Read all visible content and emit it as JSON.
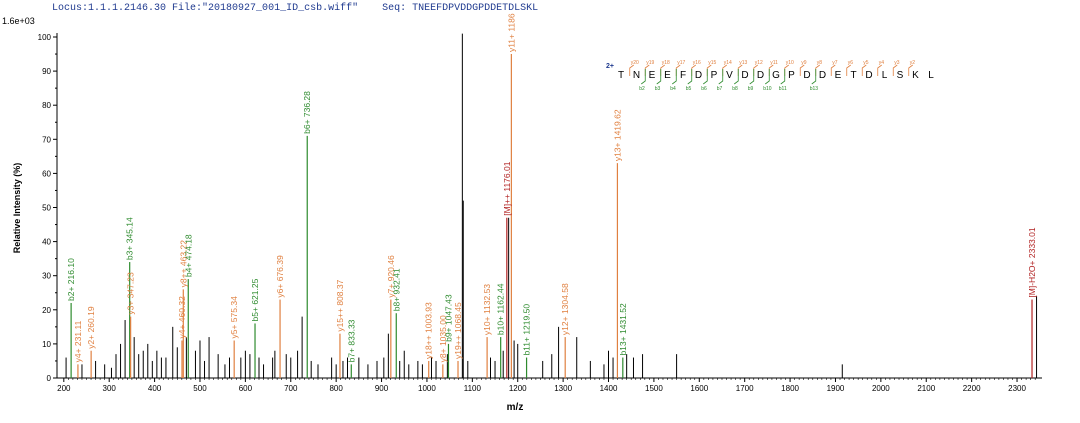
{
  "header": {
    "locus": "Locus:1.1.1.2146.30",
    "file": "File:\"20180927_001_ID_csb.wiff\"",
    "seq_label": "Seq:",
    "seq_value": "TNEEFDPVDDGPDDETDLSKL"
  },
  "chart_data": {
    "type": "bar",
    "scale_label": "1.6e+03",
    "xlabel": "m/z",
    "ylabel": "Relative Intensity (%)",
    "xlim": [
      185,
      2355
    ],
    "ylim": [
      0,
      100
    ],
    "x_ticks": [
      200,
      300,
      400,
      500,
      600,
      700,
      800,
      900,
      1000,
      1100,
      1200,
      1300,
      1400,
      1500,
      1600,
      1700,
      1800,
      1900,
      2000,
      2100,
      2200,
      2300
    ],
    "y_ticks": [
      0,
      10,
      20,
      30,
      40,
      50,
      60,
      70,
      80,
      90,
      100
    ],
    "colors": {
      "b_ion": "#2e8b2e",
      "y_ion": "#e08040",
      "precursor": "#b22222",
      "unassigned": "#000000",
      "seq_charge": "#1f3a8f"
    },
    "annotated_peaks": [
      {
        "mz": 216.1,
        "y": 22,
        "label": "b2+ 216.10",
        "kind": "b"
      },
      {
        "mz": 231.11,
        "y": 4,
        "label": "y4+ 231.11",
        "kind": "y"
      },
      {
        "mz": 260.19,
        "y": 8,
        "label": "y2+ 260.19",
        "kind": "y"
      },
      {
        "mz": 345.14,
        "y": 34,
        "label": "b3+ 345.14",
        "kind": "b"
      },
      {
        "mz": 347.23,
        "y": 18,
        "label": "y3+ 347.23",
        "kind": "y"
      },
      {
        "mz": 460.32,
        "y": 11,
        "label": "y4+ 460.32",
        "kind": "y"
      },
      {
        "mz": 463.22,
        "y": 26,
        "label": "y8++ 463.22",
        "kind": "y"
      },
      {
        "mz": 474.18,
        "y": 29,
        "label": "b4+ 474.18",
        "kind": "b"
      },
      {
        "mz": 575.34,
        "y": 11,
        "label": "y5+ 575.34",
        "kind": "y"
      },
      {
        "mz": 621.25,
        "y": 16,
        "label": "b5+ 621.25",
        "kind": "b"
      },
      {
        "mz": 676.39,
        "y": 23,
        "label": "y6+ 676.39",
        "kind": "y"
      },
      {
        "mz": 736.28,
        "y": 71,
        "label": "b6+ 736.28",
        "kind": "b"
      },
      {
        "mz": 808.37,
        "y": 13,
        "label": "y15++ 808.37",
        "kind": "y"
      },
      {
        "mz": 833.33,
        "y": 4,
        "label": "b7+ 833.33",
        "kind": "b"
      },
      {
        "mz": 920.46,
        "y": 23,
        "label": "y7+ 920.46",
        "kind": "y"
      },
      {
        "mz": 932.41,
        "y": 19,
        "label": "b8+ 932.41",
        "kind": "b"
      },
      {
        "mz": 1003.93,
        "y": 5,
        "label": "y18++ 1003.93",
        "kind": "y"
      },
      {
        "mz": 1035.0,
        "y": 4,
        "label": "y8+ 1035.00",
        "kind": "y"
      },
      {
        "mz": 1047.43,
        "y": 10,
        "label": "b9+ 1047.43",
        "kind": "b"
      },
      {
        "mz": 1068.45,
        "y": 5,
        "label": "y19++ 1068.45",
        "kind": "y"
      },
      {
        "mz": 1132.53,
        "y": 12,
        "label": "y10+ 1132.53",
        "kind": "y"
      },
      {
        "mz": 1162.44,
        "y": 12,
        "label": "b10+ 1162.44",
        "kind": "b"
      },
      {
        "mz": 1176.01,
        "y": 47,
        "label": "[M]++ 1176.01",
        "kind": "p"
      },
      {
        "mz": 1186.0,
        "y": 95,
        "label": "y11+ 1186",
        "kind": "y"
      },
      {
        "mz": 1219.5,
        "y": 6,
        "label": "b11+ 1219.50",
        "kind": "b"
      },
      {
        "mz": 1304.58,
        "y": 12,
        "label": "y12+ 1304.58",
        "kind": "y"
      },
      {
        "mz": 1419.62,
        "y": 63,
        "label": "y13+ 1419.62",
        "kind": "y"
      },
      {
        "mz": 1431.52,
        "y": 6,
        "label": "b13+ 1431.52",
        "kind": "b"
      },
      {
        "mz": 2333.01,
        "y": 23,
        "label": "[M]-H2O+ 2333.01",
        "kind": "p"
      }
    ],
    "unassigned_peaks": [
      [
        205,
        6
      ],
      [
        240,
        4
      ],
      [
        270,
        5
      ],
      [
        290,
        4
      ],
      [
        305,
        3
      ],
      [
        315,
        7
      ],
      [
        325,
        10
      ],
      [
        335,
        17
      ],
      [
        355,
        12
      ],
      [
        365,
        7
      ],
      [
        375,
        8
      ],
      [
        385,
        10
      ],
      [
        395,
        5
      ],
      [
        405,
        8
      ],
      [
        415,
        6
      ],
      [
        425,
        6
      ],
      [
        440,
        15
      ],
      [
        450,
        9
      ],
      [
        470,
        12
      ],
      [
        490,
        8
      ],
      [
        500,
        11
      ],
      [
        510,
        5
      ],
      [
        520,
        12
      ],
      [
        540,
        7
      ],
      [
        555,
        4
      ],
      [
        565,
        6
      ],
      [
        590,
        6
      ],
      [
        600,
        8
      ],
      [
        610,
        7
      ],
      [
        630,
        6
      ],
      [
        640,
        4
      ],
      [
        660,
        6
      ],
      [
        665,
        8
      ],
      [
        690,
        7
      ],
      [
        700,
        6
      ],
      [
        715,
        8
      ],
      [
        725,
        18
      ],
      [
        745,
        5
      ],
      [
        760,
        4
      ],
      [
        790,
        6
      ],
      [
        800,
        4
      ],
      [
        815,
        5
      ],
      [
        825,
        6
      ],
      [
        850,
        6
      ],
      [
        870,
        4
      ],
      [
        890,
        5
      ],
      [
        905,
        6
      ],
      [
        915,
        13
      ],
      [
        940,
        5
      ],
      [
        950,
        8
      ],
      [
        960,
        4
      ],
      [
        980,
        5
      ],
      [
        990,
        4
      ],
      [
        1010,
        6
      ],
      [
        1020,
        5
      ],
      [
        1045,
        7
      ],
      [
        1078,
        101
      ],
      [
        1080,
        52
      ],
      [
        1090,
        5
      ],
      [
        1140,
        6
      ],
      [
        1150,
        5
      ],
      [
        1168,
        8
      ],
      [
        1180,
        47
      ],
      [
        1192,
        11
      ],
      [
        1200,
        10
      ],
      [
        1255,
        5
      ],
      [
        1275,
        7
      ],
      [
        1290,
        15
      ],
      [
        1330,
        12
      ],
      [
        1360,
        5
      ],
      [
        1390,
        4
      ],
      [
        1400,
        8
      ],
      [
        1410,
        6
      ],
      [
        1440,
        7
      ],
      [
        1455,
        6
      ],
      [
        1475,
        7
      ],
      [
        1550,
        7
      ],
      [
        1915,
        4
      ],
      [
        2343,
        24
      ]
    ]
  },
  "sequence": {
    "charge": "2+",
    "residues": [
      "T",
      "N",
      "E",
      "E",
      "F",
      "D",
      "P",
      "V",
      "D",
      "D",
      "G",
      "P",
      "D",
      "D",
      "E",
      "T",
      "D",
      "L",
      "S",
      "K",
      "L"
    ],
    "y_labels": [
      "y20",
      "y19",
      "y18",
      "y17",
      "y16",
      "y15",
      "y14",
      "y13",
      "y12",
      "y11",
      "y10",
      "y9",
      "y8",
      "y7",
      "y6",
      "y5",
      "y4",
      "y3",
      "y2"
    ],
    "b_labels": [
      "b2",
      "b3",
      "b4",
      "b5",
      "b6",
      "b7",
      "b8",
      "b9",
      "b10",
      "b11",
      "b13"
    ]
  }
}
